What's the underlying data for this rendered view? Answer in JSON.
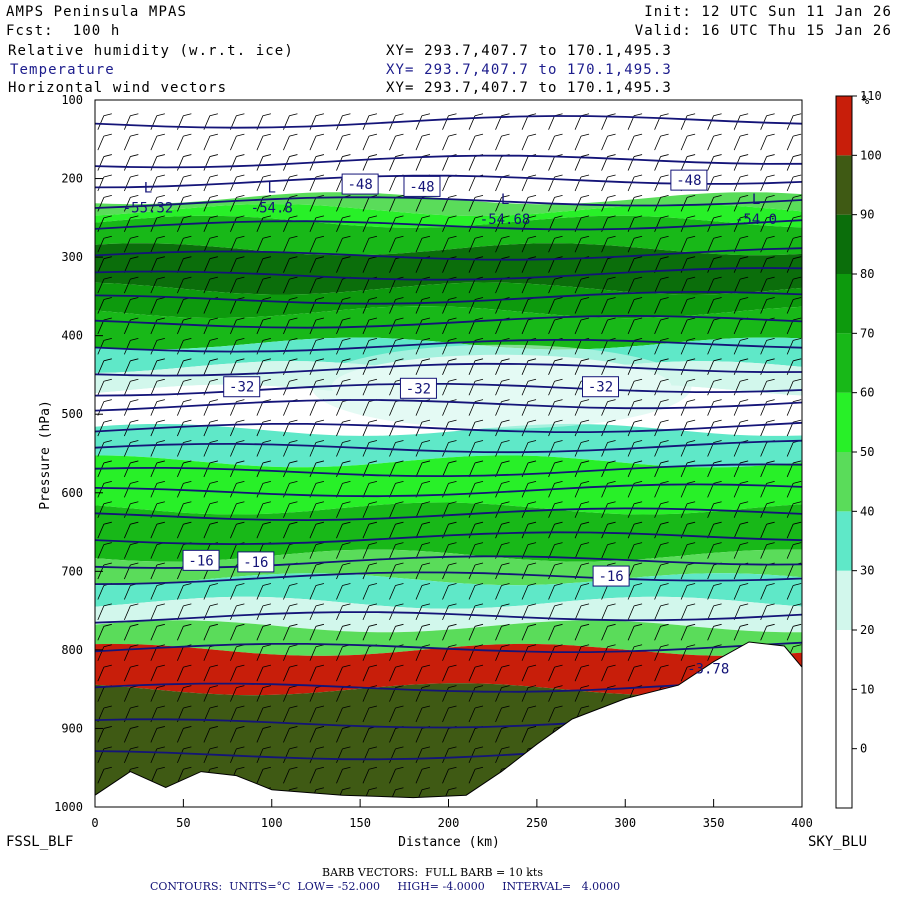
{
  "header": {
    "title": "AMPS Peninsula MPAS",
    "fcst": "Fcst:  100 h",
    "init": "Init: 12 UTC Sun 11 Jan 26",
    "valid": "Valid: 16 UTC Thu 15 Jan 26",
    "fields": [
      {
        "name": "Relative humidity (w.r.t. ice)",
        "xy": "XY= 293.7,407.7 to 170.1,495.3"
      },
      {
        "name": "Temperature",
        "xy": "XY= 293.7,407.7 to 170.1,495.3"
      },
      {
        "name": "Horizontal wind vectors",
        "xy": "XY= 293.7,407.7 to 170.1,495.3"
      }
    ]
  },
  "footer": {
    "left_label": "FSSL_BLF",
    "right_label": "SKY_BLU",
    "barb_note": "BARB VECTORS:  FULL BARB = 10 kts",
    "contour_note": "CONTOURS:  UNITS=°C  LOW= -52.000     HIGH= -4.0000     INTERVAL=   4.0000"
  },
  "colors": {
    "rh_bins": [
      "#ffffff",
      "#ffffff",
      "#ffffff",
      "#d2f7ec",
      "#5fe8c8",
      "#5adc5a",
      "#28f028",
      "#18b818",
      "#0d9a0d",
      "#0b6e0b",
      "#3f5a14",
      "#c81e0a"
    ],
    "contour": "#141478",
    "terrain": "#ffffff"
  },
  "chart_data": {
    "type": "cross-section",
    "xlabel": "Distance (km)",
    "ylabel": "Pressure (hPa)",
    "xlim": [
      0,
      400
    ],
    "ylim": [
      1000,
      100
    ],
    "x_ticks": [
      0,
      50,
      100,
      150,
      200,
      250,
      300,
      350,
      400
    ],
    "y_ticks": [
      100,
      200,
      300,
      400,
      500,
      600,
      700,
      800,
      900,
      1000
    ],
    "colorbar": {
      "unit": "%",
      "ticks": [
        0,
        10,
        20,
        30,
        40,
        50,
        60,
        70,
        80,
        90,
        100,
        110
      ]
    },
    "temperature_labels": [
      {
        "text": "-48",
        "x": 150,
        "p": 207
      },
      {
        "text": "-48",
        "x": 185,
        "p": 210
      },
      {
        "text": "-48",
        "x": 336,
        "p": 202
      },
      {
        "text": "-32",
        "x": 83,
        "p": 465
      },
      {
        "text": "-32",
        "x": 183,
        "p": 467
      },
      {
        "text": "-32",
        "x": 286,
        "p": 465
      },
      {
        "text": "-16",
        "x": 60,
        "p": 686
      },
      {
        "text": "-16",
        "x": 91,
        "p": 688
      },
      {
        "text": "-16",
        "x": 292,
        "p": 706
      }
    ],
    "low_centers": [
      {
        "label": "L",
        "value": "-55.32",
        "x": 30,
        "p": 243
      },
      {
        "label": "L",
        "value": "-54.8",
        "x": 100,
        "p": 243
      },
      {
        "label": "L",
        "value": "-54.68",
        "x": 232,
        "p": 258
      },
      {
        "label": "L",
        "value": "-54.0",
        "x": 374,
        "p": 258
      }
    ],
    "other_labels": [
      {
        "text": "-3.78",
        "x": 335,
        "p": 830
      }
    ],
    "terrain_surface": [
      {
        "x": 0,
        "p": 985
      },
      {
        "x": 20,
        "p": 955
      },
      {
        "x": 40,
        "p": 975
      },
      {
        "x": 60,
        "p": 955
      },
      {
        "x": 80,
        "p": 960
      },
      {
        "x": 100,
        "p": 978
      },
      {
        "x": 140,
        "p": 985
      },
      {
        "x": 180,
        "p": 988
      },
      {
        "x": 210,
        "p": 985
      },
      {
        "x": 230,
        "p": 955
      },
      {
        "x": 250,
        "p": 920
      },
      {
        "x": 270,
        "p": 888
      },
      {
        "x": 300,
        "p": 862
      },
      {
        "x": 330,
        "p": 845
      },
      {
        "x": 350,
        "p": 815
      },
      {
        "x": 370,
        "p": 790
      },
      {
        "x": 390,
        "p": 795
      },
      {
        "x": 400,
        "p": 822
      }
    ]
  }
}
